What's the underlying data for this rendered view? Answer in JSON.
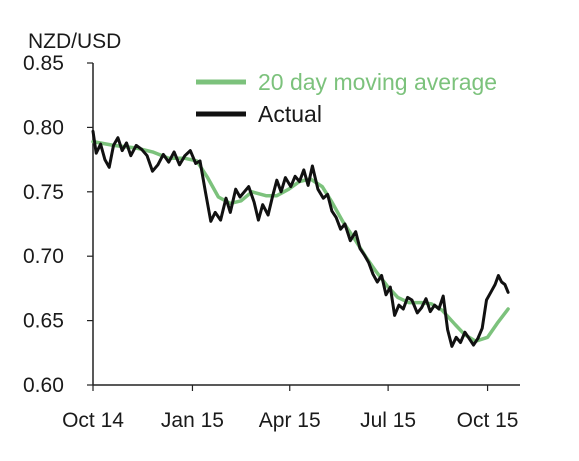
{
  "chart_data": {
    "type": "line",
    "ylabel": "NZD/USD",
    "ylim": [
      0.6,
      0.85
    ],
    "yticks": [
      "0.85",
      "0.80",
      "0.75",
      "0.70",
      "0.65",
      "0.60"
    ],
    "ytick_values": [
      0.85,
      0.8,
      0.75,
      0.7,
      0.65,
      0.6
    ],
    "xlim": [
      "2014-10-01",
      "2015-10-31"
    ],
    "xticks": [
      {
        "label": "Oct 14",
        "date": "2014-10-01"
      },
      {
        "label": "Jan 15",
        "date": "2015-01-01"
      },
      {
        "label": "Apr 15",
        "date": "2015-04-01"
      },
      {
        "label": "Jul 15",
        "date": "2015-07-01"
      },
      {
        "label": "Oct 15",
        "date": "2015-10-01"
      }
    ],
    "legend_position": "top-right",
    "grid": false,
    "series": [
      {
        "name": "20 day moving average",
        "color": "#7cc27c",
        "points": [
          [
            "2014-10-01",
            0.789
          ],
          [
            "2014-10-20",
            0.786
          ],
          [
            "2014-11-10",
            0.784
          ],
          [
            "2014-11-25",
            0.781
          ],
          [
            "2014-12-10",
            0.776
          ],
          [
            "2014-12-25",
            0.776
          ],
          [
            "2015-01-05",
            0.774
          ],
          [
            "2015-01-15",
            0.761
          ],
          [
            "2015-01-25",
            0.746
          ],
          [
            "2015-02-05",
            0.741
          ],
          [
            "2015-02-15",
            0.743
          ],
          [
            "2015-02-25",
            0.75
          ],
          [
            "2015-03-10",
            0.747
          ],
          [
            "2015-03-20",
            0.747
          ],
          [
            "2015-03-31",
            0.752
          ],
          [
            "2015-04-10",
            0.758
          ],
          [
            "2015-04-20",
            0.76
          ],
          [
            "2015-05-01",
            0.754
          ],
          [
            "2015-05-10",
            0.742
          ],
          [
            "2015-05-20",
            0.727
          ],
          [
            "2015-06-01",
            0.712
          ],
          [
            "2015-06-10",
            0.7
          ],
          [
            "2015-06-20",
            0.688
          ],
          [
            "2015-07-01",
            0.676
          ],
          [
            "2015-07-10",
            0.668
          ],
          [
            "2015-07-20",
            0.664
          ],
          [
            "2015-08-01",
            0.664
          ],
          [
            "2015-08-10",
            0.663
          ],
          [
            "2015-08-20",
            0.658
          ],
          [
            "2015-09-01",
            0.647
          ],
          [
            "2015-09-10",
            0.639
          ],
          [
            "2015-09-20",
            0.634
          ],
          [
            "2015-10-01",
            0.637
          ],
          [
            "2015-10-10",
            0.648
          ],
          [
            "2015-10-20",
            0.659
          ]
        ]
      },
      {
        "name": "Actual",
        "color": "#111111",
        "points": [
          [
            "2014-10-01",
            0.797
          ],
          [
            "2014-10-04",
            0.78
          ],
          [
            "2014-10-08",
            0.787
          ],
          [
            "2014-10-12",
            0.775
          ],
          [
            "2014-10-16",
            0.769
          ],
          [
            "2014-10-20",
            0.786
          ],
          [
            "2014-10-24",
            0.792
          ],
          [
            "2014-10-28",
            0.782
          ],
          [
            "2014-11-01",
            0.788
          ],
          [
            "2014-11-05",
            0.778
          ],
          [
            "2014-11-10",
            0.786
          ],
          [
            "2014-11-15",
            0.783
          ],
          [
            "2014-11-20",
            0.778
          ],
          [
            "2014-11-25",
            0.766
          ],
          [
            "2014-11-30",
            0.771
          ],
          [
            "2014-12-05",
            0.779
          ],
          [
            "2014-12-10",
            0.773
          ],
          [
            "2014-12-15",
            0.781
          ],
          [
            "2014-12-20",
            0.771
          ],
          [
            "2014-12-25",
            0.778
          ],
          [
            "2014-12-30",
            0.782
          ],
          [
            "2015-01-04",
            0.772
          ],
          [
            "2015-01-08",
            0.774
          ],
          [
            "2015-01-13",
            0.75
          ],
          [
            "2015-01-18",
            0.727
          ],
          [
            "2015-01-22",
            0.734
          ],
          [
            "2015-01-27",
            0.728
          ],
          [
            "2015-02-01",
            0.745
          ],
          [
            "2015-02-05",
            0.734
          ],
          [
            "2015-02-10",
            0.752
          ],
          [
            "2015-02-14",
            0.746
          ],
          [
            "2015-02-18",
            0.75
          ],
          [
            "2015-02-22",
            0.754
          ],
          [
            "2015-02-27",
            0.742
          ],
          [
            "2015-03-03",
            0.728
          ],
          [
            "2015-03-07",
            0.74
          ],
          [
            "2015-03-12",
            0.732
          ],
          [
            "2015-03-16",
            0.746
          ],
          [
            "2015-03-20",
            0.759
          ],
          [
            "2015-03-24",
            0.75
          ],
          [
            "2015-03-28",
            0.761
          ],
          [
            "2015-04-02",
            0.754
          ],
          [
            "2015-04-06",
            0.762
          ],
          [
            "2015-04-10",
            0.758
          ],
          [
            "2015-04-14",
            0.767
          ],
          [
            "2015-04-18",
            0.755
          ],
          [
            "2015-04-22",
            0.77
          ],
          [
            "2015-04-27",
            0.752
          ],
          [
            "2015-05-02",
            0.745
          ],
          [
            "2015-05-06",
            0.748
          ],
          [
            "2015-05-10",
            0.735
          ],
          [
            "2015-05-14",
            0.73
          ],
          [
            "2015-05-18",
            0.721
          ],
          [
            "2015-05-22",
            0.725
          ],
          [
            "2015-05-27",
            0.712
          ],
          [
            "2015-06-01",
            0.719
          ],
          [
            "2015-06-05",
            0.706
          ],
          [
            "2015-06-09",
            0.701
          ],
          [
            "2015-06-13",
            0.695
          ],
          [
            "2015-06-17",
            0.686
          ],
          [
            "2015-06-21",
            0.68
          ],
          [
            "2015-06-25",
            0.685
          ],
          [
            "2015-06-29",
            0.67
          ],
          [
            "2015-07-03",
            0.676
          ],
          [
            "2015-07-07",
            0.654
          ],
          [
            "2015-07-11",
            0.662
          ],
          [
            "2015-07-15",
            0.659
          ],
          [
            "2015-07-19",
            0.668
          ],
          [
            "2015-07-23",
            0.666
          ],
          [
            "2015-07-28",
            0.656
          ],
          [
            "2015-08-01",
            0.66
          ],
          [
            "2015-08-05",
            0.667
          ],
          [
            "2015-08-09",
            0.657
          ],
          [
            "2015-08-13",
            0.662
          ],
          [
            "2015-08-17",
            0.659
          ],
          [
            "2015-08-21",
            0.669
          ],
          [
            "2015-08-25",
            0.643
          ],
          [
            "2015-08-29",
            0.63
          ],
          [
            "2015-09-02",
            0.637
          ],
          [
            "2015-09-06",
            0.633
          ],
          [
            "2015-09-10",
            0.641
          ],
          [
            "2015-09-14",
            0.636
          ],
          [
            "2015-09-18",
            0.631
          ],
          [
            "2015-09-22",
            0.636
          ],
          [
            "2015-09-26",
            0.644
          ],
          [
            "2015-09-30",
            0.666
          ],
          [
            "2015-10-04",
            0.672
          ],
          [
            "2015-10-08",
            0.678
          ],
          [
            "2015-10-11",
            0.685
          ],
          [
            "2015-10-14",
            0.68
          ],
          [
            "2015-10-17",
            0.678
          ],
          [
            "2015-10-20",
            0.672
          ]
        ]
      }
    ]
  }
}
